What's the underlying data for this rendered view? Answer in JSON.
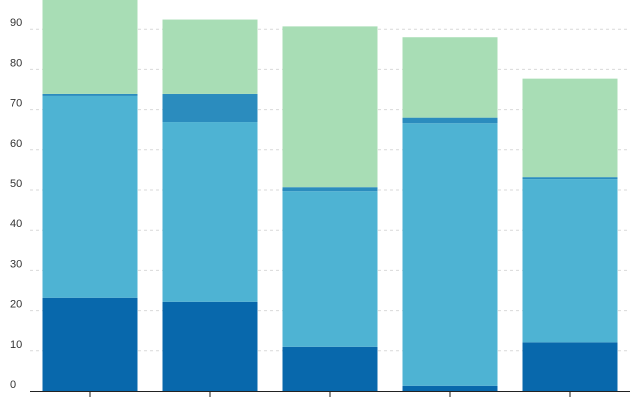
{
  "chart_data": {
    "type": "bar",
    "stacked": true,
    "title": "",
    "xlabel": "",
    "ylabel": "",
    "ylim": [
      0,
      96
    ],
    "yticks": [
      0,
      10,
      20,
      30,
      40,
      50,
      60,
      70,
      80,
      90
    ],
    "grid": "horizontal-dashed",
    "categories": [
      "",
      "",
      "",
      "",
      ""
    ],
    "series": [
      {
        "color": "#0868ac",
        "values": [
          23.2,
          22.2,
          11.0,
          1.3,
          12.1
        ]
      },
      {
        "color": "#4eb3d3",
        "values": [
          50.2,
          44.7,
          38.7,
          65.3,
          40.6
        ]
      },
      {
        "color": "#2b8cbe",
        "values": [
          0.5,
          7.0,
          1.0,
          1.4,
          0.5
        ]
      },
      {
        "color": "#a8ddb5",
        "values": [
          25.0,
          18.5,
          40.0,
          20.0,
          24.5
        ]
      }
    ]
  }
}
